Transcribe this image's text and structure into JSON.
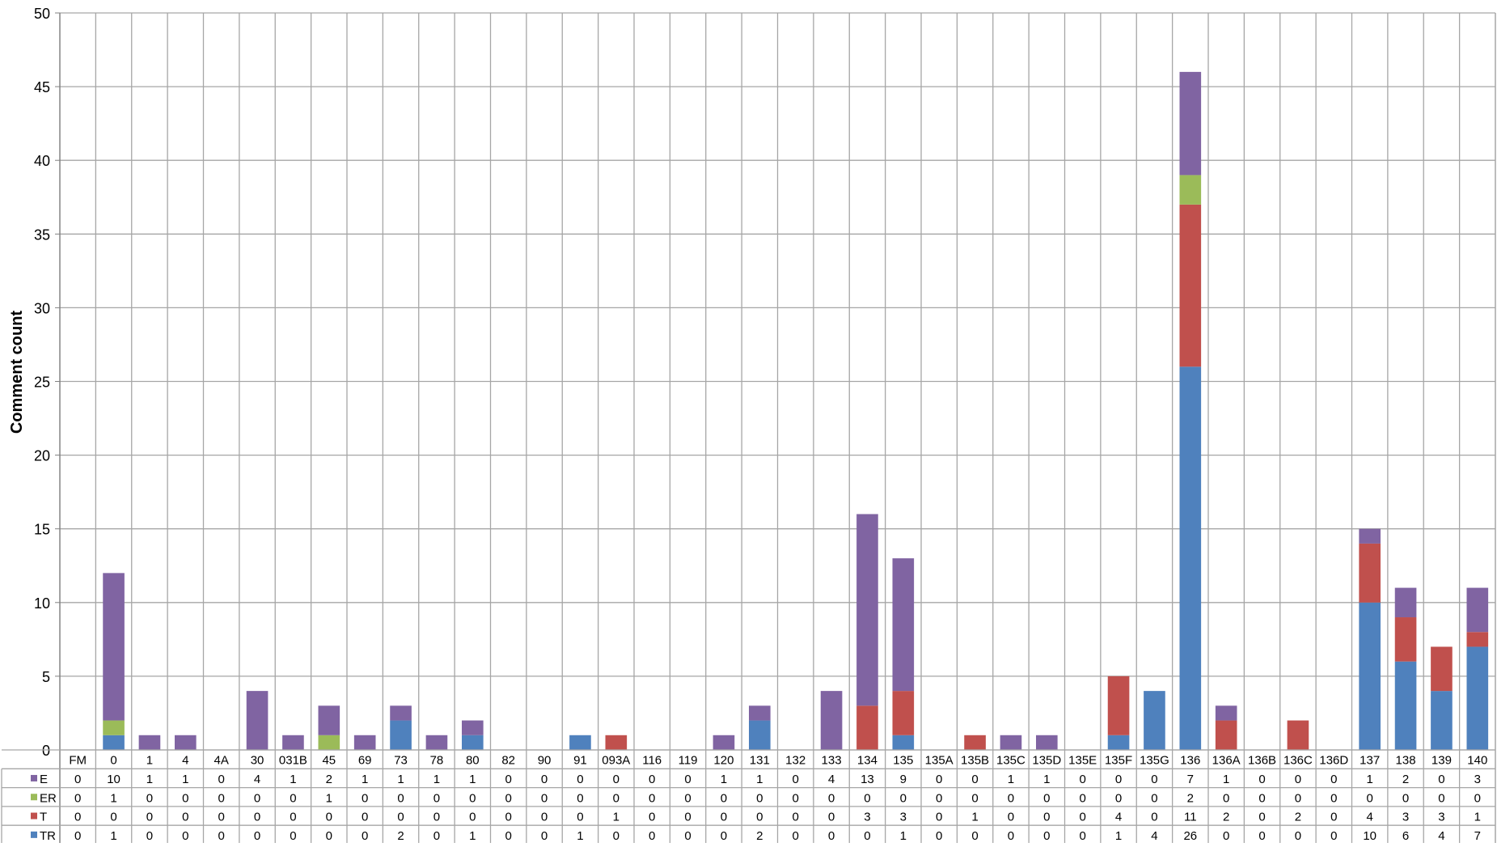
{
  "chart_data": {
    "type": "bar",
    "stacked": true,
    "title": "",
    "xlabel": "",
    "ylabel": "Comment count",
    "ylim": [
      0,
      50
    ],
    "yticks": [
      0,
      5,
      10,
      15,
      20,
      25,
      30,
      35,
      40,
      45,
      50
    ],
    "grid": true,
    "legend_placement": "left of data table",
    "categories": [
      "FM",
      "0",
      "1",
      "4",
      "4A",
      "30",
      "031B",
      "45",
      "69",
      "73",
      "78",
      "80",
      "82",
      "90",
      "91",
      "093A",
      "116",
      "119",
      "120",
      "131",
      "132",
      "133",
      "134",
      "135",
      "135A",
      "135B",
      "135C",
      "135D",
      "135E",
      "135F",
      "135G",
      "136",
      "136A",
      "136B",
      "136C",
      "136D",
      "137",
      "138",
      "139",
      "140"
    ],
    "series": [
      {
        "name": "TR",
        "color": "#4F81BD",
        "values": [
          0,
          1,
          0,
          0,
          0,
          0,
          0,
          0,
          0,
          2,
          0,
          1,
          0,
          0,
          1,
          0,
          0,
          0,
          0,
          2,
          0,
          0,
          0,
          1,
          0,
          0,
          0,
          0,
          0,
          1,
          4,
          26,
          0,
          0,
          0,
          0,
          10,
          6,
          4,
          7
        ]
      },
      {
        "name": "T",
        "color": "#C0504D",
        "values": [
          0,
          0,
          0,
          0,
          0,
          0,
          0,
          0,
          0,
          0,
          0,
          0,
          0,
          0,
          0,
          1,
          0,
          0,
          0,
          0,
          0,
          0,
          3,
          3,
          0,
          1,
          0,
          0,
          0,
          4,
          0,
          11,
          2,
          0,
          2,
          0,
          4,
          3,
          3,
          1
        ]
      },
      {
        "name": "ER",
        "color": "#9BBB59",
        "values": [
          0,
          1,
          0,
          0,
          0,
          0,
          0,
          1,
          0,
          0,
          0,
          0,
          0,
          0,
          0,
          0,
          0,
          0,
          0,
          0,
          0,
          0,
          0,
          0,
          0,
          0,
          0,
          0,
          0,
          0,
          0,
          2,
          0,
          0,
          0,
          0,
          0,
          0,
          0,
          0
        ]
      },
      {
        "name": "E",
        "color": "#8064A2",
        "values": [
          0,
          10,
          1,
          1,
          0,
          4,
          1,
          2,
          1,
          1,
          1,
          1,
          0,
          0,
          0,
          0,
          0,
          0,
          1,
          1,
          0,
          4,
          13,
          9,
          0,
          0,
          1,
          1,
          0,
          0,
          0,
          7,
          1,
          0,
          0,
          0,
          1,
          2,
          0,
          3
        ]
      }
    ],
    "table_row_order": [
      "E",
      "ER",
      "T",
      "TR"
    ]
  }
}
